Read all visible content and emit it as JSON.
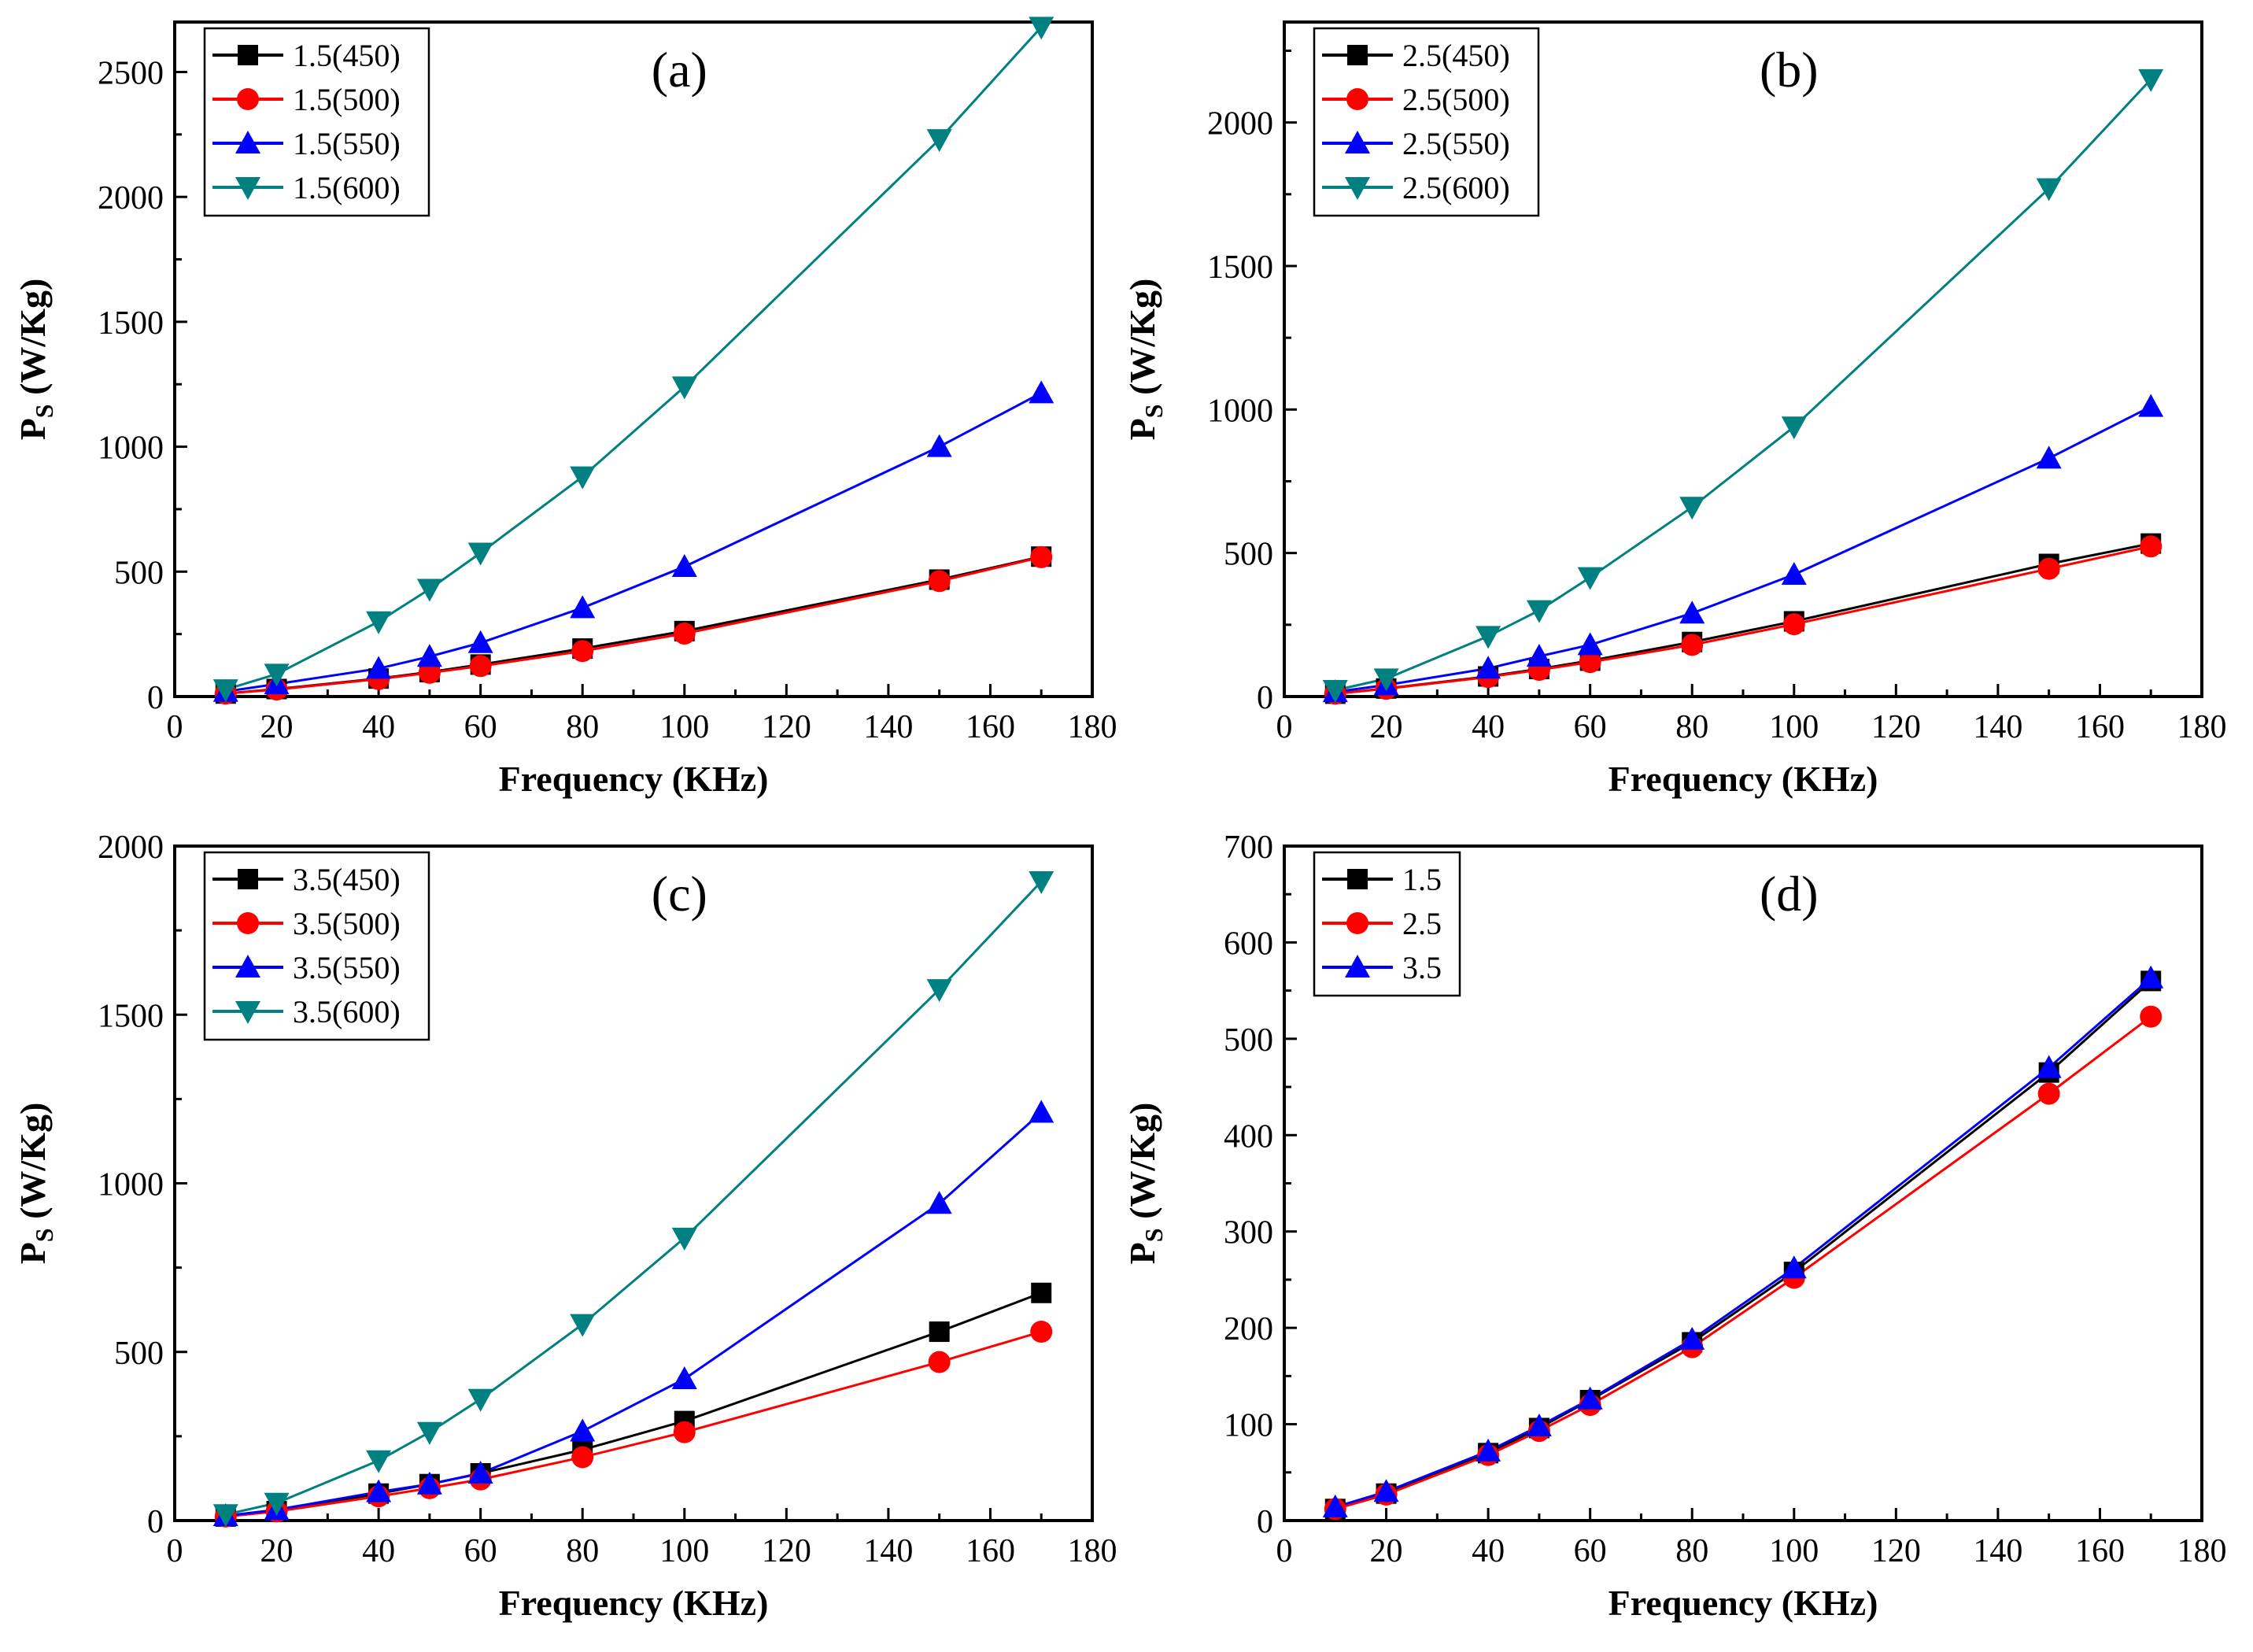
{
  "colors": {
    "black": "#000000",
    "red": "#ff0000",
    "blue": "#0000ff",
    "teal": "#008080"
  },
  "chart_data": [
    {
      "type": "line",
      "panel": "(a)",
      "xlabel": "Frequency (KHz)",
      "ylabel_main": "P",
      "ylabel_sub": "S",
      "ylabel_rest": " (W/Kg)",
      "xlim": [
        0,
        180
      ],
      "ylim": [
        0,
        2700
      ],
      "xticks": [
        0,
        20,
        40,
        60,
        80,
        100,
        120,
        140,
        160,
        180
      ],
      "yticks": [
        0,
        500,
        1000,
        1500,
        2000,
        2500
      ],
      "grid": false,
      "legend_position": "top-left",
      "x": [
        10,
        20,
        40,
        50,
        60,
        80,
        100,
        150,
        170
      ],
      "series": [
        {
          "name": "1.5(450)",
          "marker": "square",
          "color": "#000000",
          "values": [
            12,
            30,
            72,
            98,
            128,
            192,
            262,
            468,
            560
          ]
        },
        {
          "name": "1.5(500)",
          "marker": "circle",
          "color": "#ff0000",
          "values": [
            12,
            28,
            70,
            95,
            122,
            182,
            252,
            462,
            558
          ]
        },
        {
          "name": "1.5(550)",
          "marker": "triangle-up",
          "color": "#0000ff",
          "values": [
            20,
            50,
            112,
            160,
            215,
            355,
            520,
            1000,
            1215
          ]
        },
        {
          "name": "1.5(600)",
          "marker": "triangle-down",
          "color": "#008080",
          "values": [
            28,
            90,
            300,
            430,
            575,
            880,
            1240,
            2230,
            2680
          ]
        }
      ]
    },
    {
      "type": "line",
      "panel": "(b)",
      "xlabel": "Frequency (KHz)",
      "ylabel_main": "P",
      "ylabel_sub": "S",
      "ylabel_rest": " (W/Kg)",
      "xlim": [
        0,
        180
      ],
      "ylim": [
        0,
        2350
      ],
      "xticks": [
        0,
        20,
        40,
        60,
        80,
        100,
        120,
        140,
        160,
        180
      ],
      "yticks": [
        0,
        500,
        1000,
        1500,
        2000
      ],
      "grid": false,
      "legend_position": "top-left",
      "x": [
        10,
        20,
        40,
        50,
        60,
        80,
        100,
        150,
        170
      ],
      "series": [
        {
          "name": "2.5(450)",
          "marker": "square",
          "color": "#000000",
          "values": [
            10,
            28,
            70,
            96,
            125,
            190,
            262,
            462,
            533
          ]
        },
        {
          "name": "2.5(500)",
          "marker": "circle",
          "color": "#ff0000",
          "values": [
            10,
            27,
            68,
            93,
            120,
            180,
            252,
            445,
            523
          ]
        },
        {
          "name": "2.5(550)",
          "marker": "triangle-up",
          "color": "#0000ff",
          "values": [
            16,
            40,
            98,
            140,
            180,
            290,
            425,
            830,
            1010
          ]
        },
        {
          "name": "2.5(600)",
          "marker": "triangle-down",
          "color": "#008080",
          "values": [
            22,
            62,
            210,
            300,
            415,
            660,
            940,
            1770,
            2150
          ]
        }
      ]
    },
    {
      "type": "line",
      "panel": "(c)",
      "xlabel": "Frequency (KHz)",
      "ylabel_main": "P",
      "ylabel_sub": "S",
      "ylabel_rest": " (W/Kg)",
      "xlim": [
        0,
        180
      ],
      "ylim": [
        0,
        2000
      ],
      "xticks": [
        0,
        20,
        40,
        60,
        80,
        100,
        120,
        140,
        160,
        180
      ],
      "yticks": [
        0,
        500,
        1000,
        1500,
        2000
      ],
      "grid": false,
      "legend_position": "top-left",
      "x": [
        10,
        20,
        40,
        50,
        60,
        80,
        100,
        150,
        170
      ],
      "series": [
        {
          "name": "3.5(450)",
          "marker": "square",
          "color": "#000000",
          "values": [
            12,
            28,
            80,
            108,
            140,
            210,
            295,
            560,
            675
          ]
        },
        {
          "name": "3.5(500)",
          "marker": "circle",
          "color": "#ff0000",
          "values": [
            12,
            27,
            72,
            96,
            122,
            188,
            262,
            470,
            560
          ]
        },
        {
          "name": "3.5(550)",
          "marker": "triangle-up",
          "color": "#0000ff",
          "values": [
            14,
            32,
            85,
            108,
            140,
            265,
            420,
            940,
            1210
          ]
        },
        {
          "name": "3.5(600)",
          "marker": "triangle-down",
          "color": "#008080",
          "values": [
            18,
            52,
            178,
            262,
            360,
            582,
            838,
            1575,
            1895
          ]
        }
      ]
    },
    {
      "type": "line",
      "panel": "(d)",
      "xlabel": "Frequency (KHz)",
      "ylabel_main": "P",
      "ylabel_sub": "S",
      "ylabel_rest": " (W/Kg)",
      "xlim": [
        0,
        180
      ],
      "ylim": [
        0,
        700
      ],
      "xticks": [
        0,
        20,
        40,
        60,
        80,
        100,
        120,
        140,
        160,
        180
      ],
      "yticks": [
        0,
        100,
        200,
        300,
        400,
        500,
        600,
        700
      ],
      "grid": false,
      "legend_position": "top-left",
      "x": [
        10,
        20,
        40,
        50,
        60,
        80,
        100,
        150,
        170
      ],
      "series": [
        {
          "name": "1.5",
          "marker": "square",
          "color": "#000000",
          "values": [
            12,
            28,
            70,
            96,
            125,
            185,
            258,
            465,
            560
          ]
        },
        {
          "name": "2.5",
          "marker": "circle",
          "color": "#ff0000",
          "values": [
            12,
            27,
            68,
            93,
            120,
            180,
            252,
            443,
            523
          ]
        },
        {
          "name": "3.5",
          "marker": "triangle-up",
          "color": "#0000ff",
          "values": [
            14,
            30,
            72,
            98,
            126,
            188,
            262,
            470,
            563
          ]
        }
      ]
    }
  ]
}
